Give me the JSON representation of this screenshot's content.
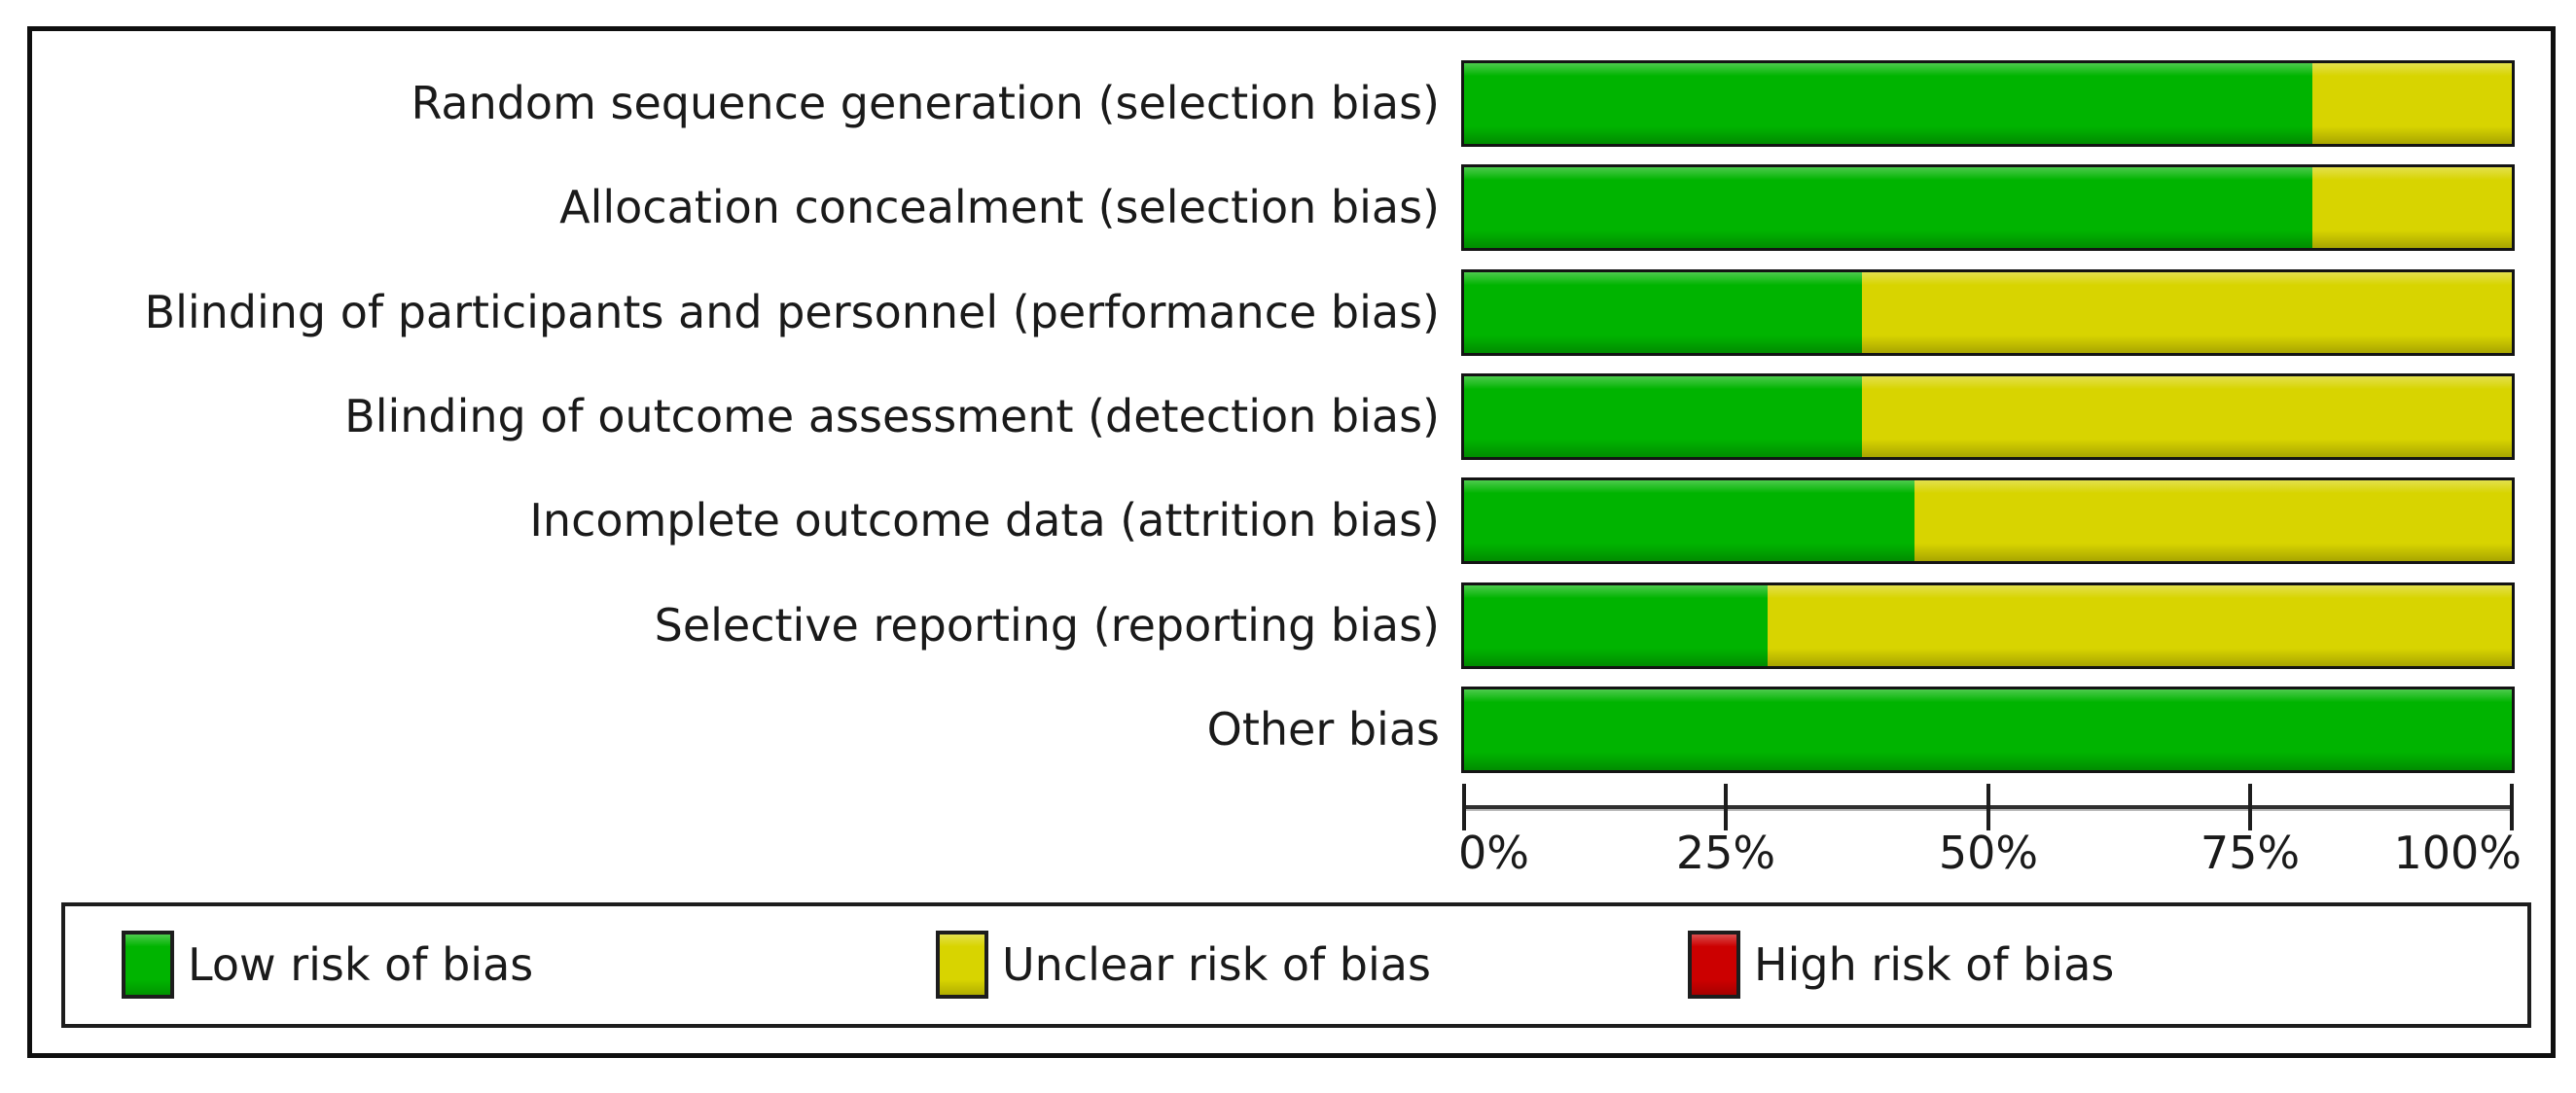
{
  "chart_data": {
    "type": "bar",
    "variant": "horizontal-stacked-percent",
    "title": "",
    "xlabel": "",
    "ylabel": "",
    "grid": false,
    "legend_position": "bottom",
    "categories": [
      "Random sequence generation (selection bias)",
      "Allocation concealment (selection bias)",
      "Blinding of participants and personnel (performance bias)",
      "Blinding of outcome assessment (detection bias)",
      "Incomplete outcome data (attrition bias)",
      "Selective reporting (reporting bias)",
      "Other bias"
    ],
    "series": [
      {
        "name": "Low risk of bias",
        "color": "#00b400",
        "values": [
          81,
          81,
          38,
          38,
          43,
          29,
          100
        ]
      },
      {
        "name": "Unclear risk of bias",
        "color": "#d8d400",
        "values": [
          19,
          19,
          62,
          62,
          57,
          71,
          0
        ]
      },
      {
        "name": "High risk of bias",
        "color": "#cc0000",
        "values": [
          0,
          0,
          0,
          0,
          0,
          0,
          0
        ]
      }
    ],
    "x_axis": {
      "range": [
        0,
        100
      ],
      "tick_labels": [
        "0%",
        "25%",
        "50%",
        "75%",
        "100%"
      ],
      "tick_values": [
        0,
        25,
        50,
        75,
        100
      ]
    }
  },
  "legend": {
    "items": [
      {
        "label": "Low risk of bias",
        "color": "#00b400"
      },
      {
        "label": "Unclear risk of bias",
        "color": "#d8d400"
      },
      {
        "label": "High risk of bias",
        "color": "#cc0000"
      }
    ]
  },
  "colors": {
    "low_risk": "#00b400",
    "unclear_risk": "#d8d400",
    "high_risk": "#cc0000",
    "ink": "#161616",
    "background": "#ffffff"
  }
}
